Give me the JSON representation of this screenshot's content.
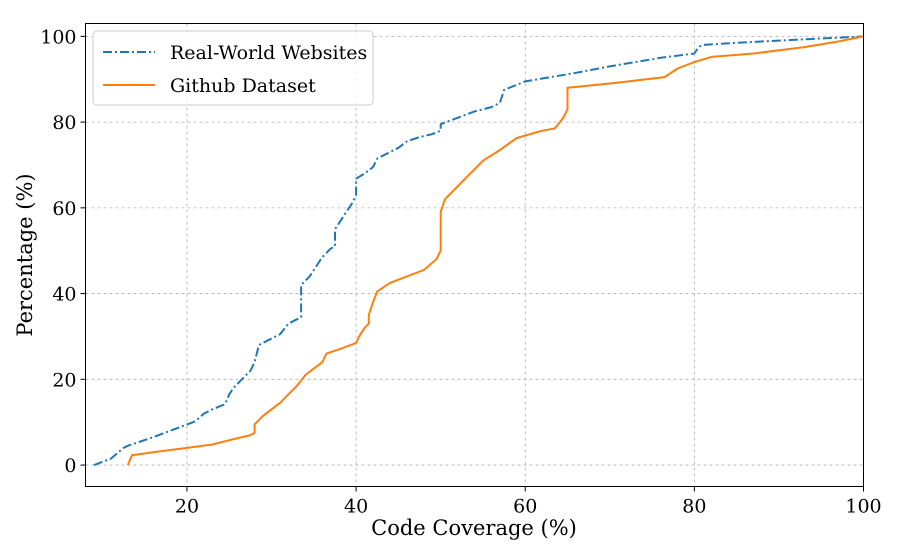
{
  "chart_data": {
    "type": "line",
    "xlabel": "Code Coverage (%)",
    "ylabel": "Percentage (%)",
    "xlim": [
      8,
      100
    ],
    "ylim": [
      -5,
      103
    ],
    "xticks": [
      20,
      40,
      60,
      80,
      100
    ],
    "yticks": [
      0,
      20,
      40,
      60,
      80,
      100
    ],
    "grid": true,
    "legend_position": "top-left",
    "series": [
      {
        "name": "Real-World Websites",
        "color": "#1f77b4",
        "style": "dashdot",
        "points": [
          [
            9,
            0
          ],
          [
            11,
            1.5
          ],
          [
            12.5,
            4
          ],
          [
            13,
            4.5
          ],
          [
            14.5,
            5.5
          ],
          [
            16,
            6.5
          ],
          [
            18,
            8
          ],
          [
            21,
            10.2
          ],
          [
            22,
            12
          ],
          [
            23,
            13
          ],
          [
            24.5,
            14.2
          ],
          [
            25,
            16.5
          ],
          [
            25.5,
            18
          ],
          [
            26.5,
            20
          ],
          [
            27.5,
            22
          ],
          [
            28,
            24
          ],
          [
            28.5,
            28
          ],
          [
            29.5,
            29
          ],
          [
            31,
            30.5
          ],
          [
            32,
            33
          ],
          [
            33,
            34
          ],
          [
            33.5,
            34.5
          ],
          [
            33.5,
            42
          ],
          [
            34.5,
            44
          ],
          [
            35,
            45.5
          ],
          [
            36,
            48.5
          ],
          [
            37,
            50.5
          ],
          [
            37.5,
            51
          ],
          [
            37.5,
            55
          ],
          [
            38.5,
            58
          ],
          [
            39.5,
            61
          ],
          [
            40,
            63
          ],
          [
            40,
            66.8
          ],
          [
            41,
            68
          ],
          [
            42,
            69.5
          ],
          [
            42.5,
            71.5
          ],
          [
            44,
            73
          ],
          [
            45,
            74
          ],
          [
            46,
            75.5
          ],
          [
            47.5,
            76.5
          ],
          [
            49,
            77.2
          ],
          [
            50,
            78
          ],
          [
            50,
            79.5
          ],
          [
            52,
            81
          ],
          [
            54,
            82.5
          ],
          [
            56,
            83.5
          ],
          [
            57,
            84.5
          ],
          [
            57.5,
            87.5
          ],
          [
            60,
            89.5
          ],
          [
            63,
            90.5
          ],
          [
            66,
            91.5
          ],
          [
            70,
            93
          ],
          [
            73,
            94
          ],
          [
            76,
            95
          ],
          [
            80,
            96
          ],
          [
            80.5,
            97.5
          ],
          [
            81,
            98
          ],
          [
            85,
            98.5
          ],
          [
            90,
            99
          ],
          [
            95,
            99.5
          ],
          [
            100,
            100
          ]
        ]
      },
      {
        "name": "Github Dataset",
        "color": "#ff7f0e",
        "style": "solid",
        "points": [
          [
            13,
            0
          ],
          [
            13.5,
            2.3
          ],
          [
            16,
            3
          ],
          [
            20,
            4
          ],
          [
            23,
            4.8
          ],
          [
            25,
            5.8
          ],
          [
            27.5,
            7
          ],
          [
            28,
            7.5
          ],
          [
            28,
            9.5
          ],
          [
            28.5,
            10.5
          ],
          [
            29,
            11.5
          ],
          [
            30,
            13
          ],
          [
            31,
            14.5
          ],
          [
            32,
            16.5
          ],
          [
            33,
            18.5
          ],
          [
            34,
            21
          ],
          [
            35,
            22.5
          ],
          [
            36,
            24
          ],
          [
            36.5,
            26
          ],
          [
            38,
            27
          ],
          [
            40,
            28.5
          ],
          [
            40.5,
            30.5
          ],
          [
            41,
            32
          ],
          [
            41.5,
            33
          ],
          [
            41.5,
            35
          ],
          [
            42,
            38
          ],
          [
            42.5,
            40.5
          ],
          [
            44,
            42.5
          ],
          [
            46,
            44
          ],
          [
            48,
            45.5
          ],
          [
            49.5,
            48
          ],
          [
            50,
            50
          ],
          [
            50,
            55
          ],
          [
            50,
            59
          ],
          [
            50.5,
            62
          ],
          [
            51.5,
            64
          ],
          [
            53,
            67
          ],
          [
            54,
            69
          ],
          [
            55,
            71
          ],
          [
            57,
            73.5
          ],
          [
            59,
            76.3
          ],
          [
            62,
            78
          ],
          [
            63.5,
            78.5
          ],
          [
            64.5,
            81
          ],
          [
            65,
            83
          ],
          [
            65,
            88
          ],
          [
            70,
            89
          ],
          [
            76.5,
            90.5
          ],
          [
            78,
            92.5
          ],
          [
            80,
            94
          ],
          [
            82,
            95.2
          ],
          [
            87,
            96
          ],
          [
            93,
            97.5
          ],
          [
            97,
            98.8
          ],
          [
            100,
            100
          ]
        ]
      }
    ]
  }
}
